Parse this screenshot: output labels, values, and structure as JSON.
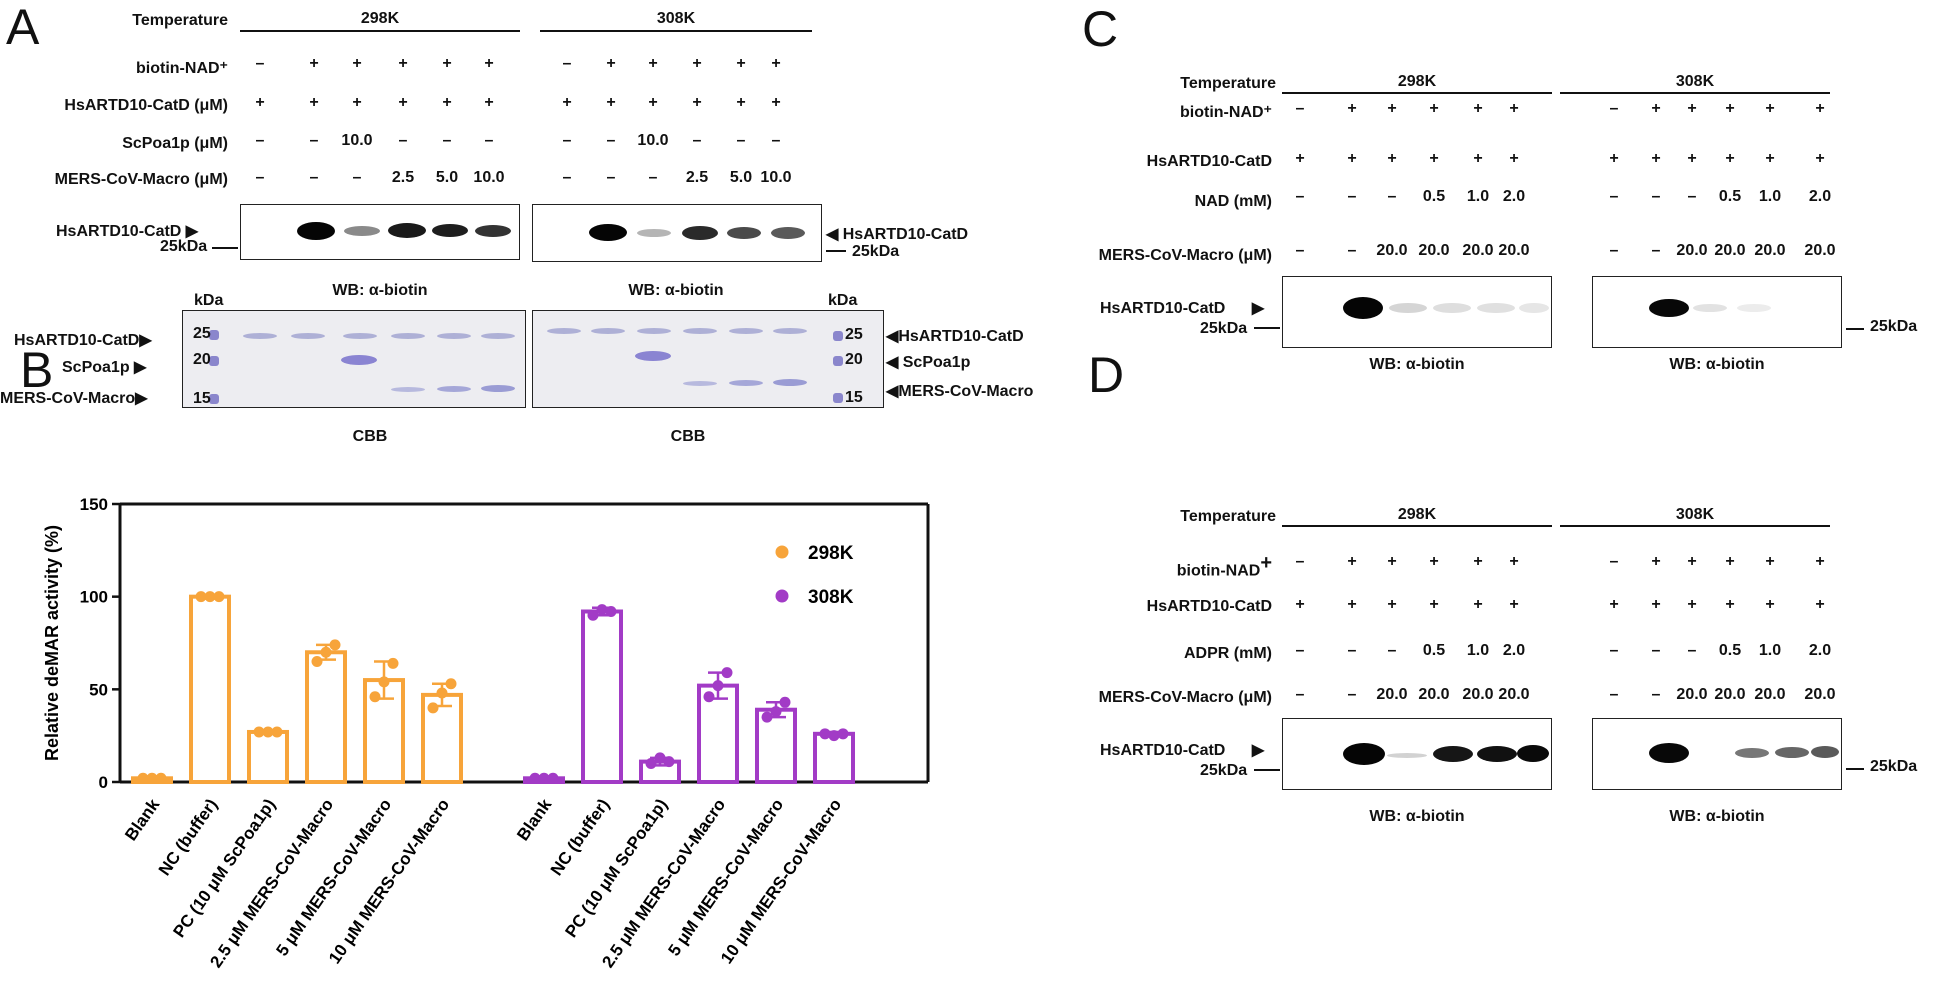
{
  "panels": {
    "A": "A",
    "B": "B",
    "C": "C",
    "D": "D"
  },
  "symbols": {
    "plus": "+",
    "minus": "–"
  },
  "panel_a": {
    "temperature_label": "Temperature",
    "groups": [
      "298K",
      "308K"
    ],
    "row_labels": [
      "biotin-NAD⁺",
      "HsARTD10-CatD (μM)",
      "ScPoa1p (μM)",
      "MERS-CoV-Macro (μM)"
    ],
    "rows": [
      [
        "–",
        "+",
        "+",
        "+",
        "+",
        "+"
      ],
      [
        "+",
        "+",
        "+",
        "+",
        "+",
        "+"
      ],
      [
        "–",
        "–",
        "10.0",
        "–",
        "–",
        "–"
      ],
      [
        "–",
        "–",
        "–",
        "2.5",
        "5.0",
        "10.0"
      ]
    ],
    "blot_label_left": "HsARTD10-CatD",
    "blot_label_right": "HsARTD10-CatD",
    "size_marker": "25kDa",
    "wb_caption": "WB: α-biotin",
    "kda": "kDa",
    "ladder": [
      "25",
      "20",
      "15"
    ],
    "cbb_labels": [
      "HsARTD10-CatD",
      "ScPoa1p",
      "MERS-CoV-Macro"
    ],
    "cbb_caption": "CBB"
  },
  "panel_c": {
    "temperature_label": "Temperature",
    "groups": [
      "298K",
      "308K"
    ],
    "row_labels": [
      "biotin-NAD⁺",
      "HsARTD10-CatD",
      "NAD (mM)",
      "MERS-CoV-Macro (μM)"
    ],
    "rows": [
      [
        "–",
        "+",
        "+",
        "+",
        "+",
        "+"
      ],
      [
        "+",
        "+",
        "+",
        "+",
        "+",
        "+"
      ],
      [
        "–",
        "–",
        "–",
        "0.5",
        "1.0",
        "2.0"
      ],
      [
        "–",
        "–",
        "20.0",
        "20.0",
        "20.0",
        "20.0"
      ]
    ],
    "blot_label": "HsARTD10-CatD",
    "size_marker": "25kDa",
    "wb_caption": "WB: α-biotin"
  },
  "panel_d": {
    "temperature_label": "Temperature",
    "groups": [
      "298K",
      "308K"
    ],
    "row_labels": [
      "biotin-NAD",
      "HsARTD10-CatD",
      "ADPR (mM)",
      "MERS-CoV-Macro (μM)"
    ],
    "row0_superscript": "+",
    "rows": [
      [
        "–",
        "+",
        "+",
        "+",
        "+",
        "+"
      ],
      [
        "+",
        "+",
        "+",
        "+",
        "+",
        "+"
      ],
      [
        "–",
        "–",
        "–",
        "0.5",
        "1.0",
        "2.0"
      ],
      [
        "–",
        "–",
        "20.0",
        "20.0",
        "20.0",
        "20.0"
      ]
    ],
    "blot_label": "HsARTD10-CatD",
    "size_marker": "25kDa",
    "wb_caption": "WB: α-biotin"
  },
  "chart_data": {
    "type": "bar",
    "title": "",
    "ylabel": "Relative deMAR activity (%)",
    "xlabel": "",
    "ylim": [
      0,
      150
    ],
    "yticks": [
      0,
      50,
      100,
      150
    ],
    "categories": [
      "Blank",
      "NC (buffer)",
      "PC (10 μM ScPoa1p)",
      "2.5 μM MERS-CoV-Macro",
      "5 μM MERS-CoV-Macro",
      "10 μM MERS-CoV-Macro"
    ],
    "legend_position": "top-right",
    "series": [
      {
        "name": "298K",
        "color": "#f7a43a",
        "values": [
          2,
          100,
          27,
          70,
          55,
          47
        ],
        "errors": [
          0,
          0,
          1,
          4,
          10,
          6
        ],
        "points": [
          [
            2,
            2,
            2
          ],
          [
            100,
            100,
            100
          ],
          [
            27,
            27,
            27
          ],
          [
            65,
            70,
            74
          ],
          [
            46,
            54,
            64
          ],
          [
            40,
            48,
            53
          ]
        ]
      },
      {
        "name": "308K",
        "color": "#a23bc6",
        "values": [
          2,
          92,
          11,
          52,
          39,
          26
        ],
        "errors": [
          0,
          2,
          2,
          7,
          4,
          1
        ],
        "points": [
          [
            2,
            2,
            2
          ],
          [
            90,
            93,
            92
          ],
          [
            10,
            13,
            11
          ],
          [
            46,
            52,
            59
          ],
          [
            35,
            38,
            43
          ],
          [
            26,
            25,
            26
          ]
        ]
      }
    ]
  }
}
